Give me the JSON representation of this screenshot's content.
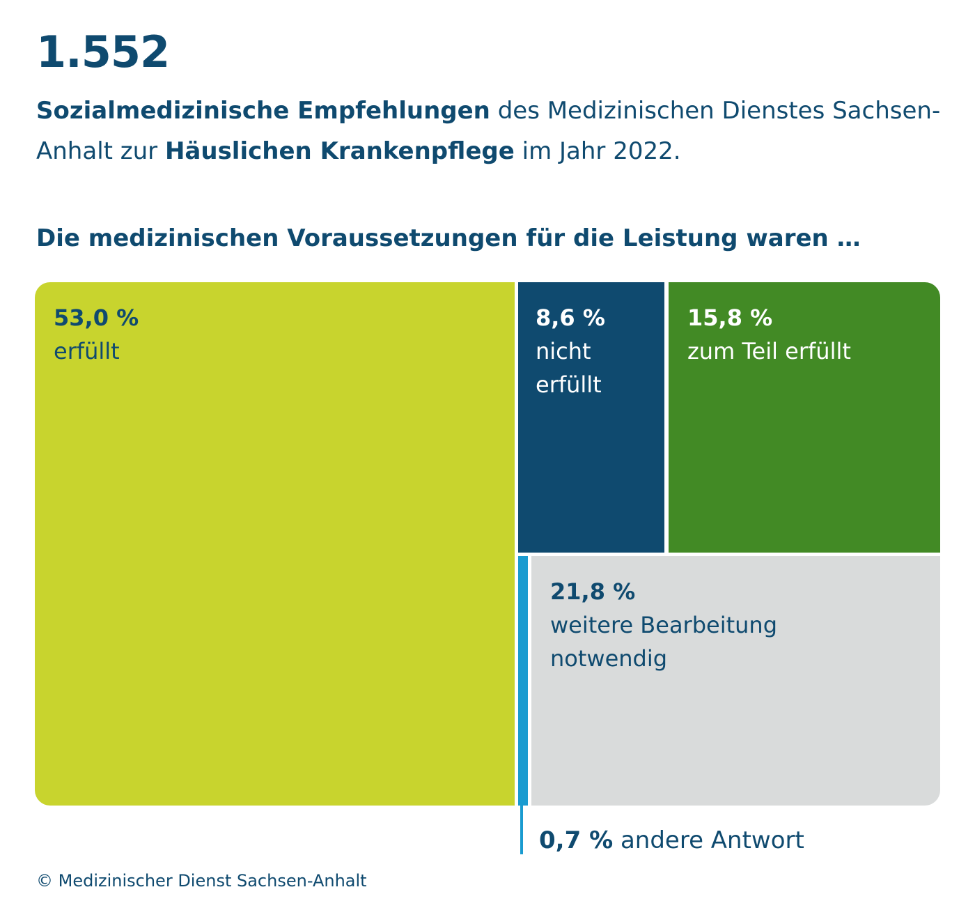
{
  "header": {
    "big_number": "1.552",
    "subtitle_parts": {
      "bold1": "Sozialmedizinische Empfehlungen",
      "text1": " des Medizinischen Dienstes Sachsen-Anhalt zur ",
      "bold2": "Häuslichen Krankenpflege",
      "text2": " im Jahr 2022."
    },
    "section_heading": "Die medizinischen Voraussetzungen für die Leistung waren …"
  },
  "chart_data": {
    "type": "treemap",
    "unit": "%",
    "title": "Die medizinischen Voraussetzungen für die Leistung waren …",
    "categories": [
      "erfüllt",
      "nicht erfüllt",
      "zum Teil erfüllt",
      "weitere Bearbeitung notwendig",
      "andere Antwort"
    ],
    "values": [
      53.0,
      8.6,
      15.8,
      21.8,
      0.7
    ],
    "labels": {
      "erfuellt": {
        "pct": "53,0 %",
        "name": "erfüllt"
      },
      "nicht": {
        "pct": "8,6 %",
        "name": "nicht erfüllt"
      },
      "teil": {
        "pct": "15,8 %",
        "name": "zum Teil erfüllt"
      },
      "weitere": {
        "pct": "21,8 %",
        "name": "weitere Bearbeitung notwendig"
      },
      "andere": {
        "pct": "0,7 %",
        "name": "andere Antwort"
      }
    },
    "colors": {
      "erfuellt": "#c8d42e",
      "nicht": "#0f4a6f",
      "teil": "#428a25",
      "weitere": "#d9dbdb",
      "andere": "#1a9bd0"
    }
  },
  "footer": {
    "copyright": "© Medizinischer Dienst Sachsen-Anhalt"
  }
}
